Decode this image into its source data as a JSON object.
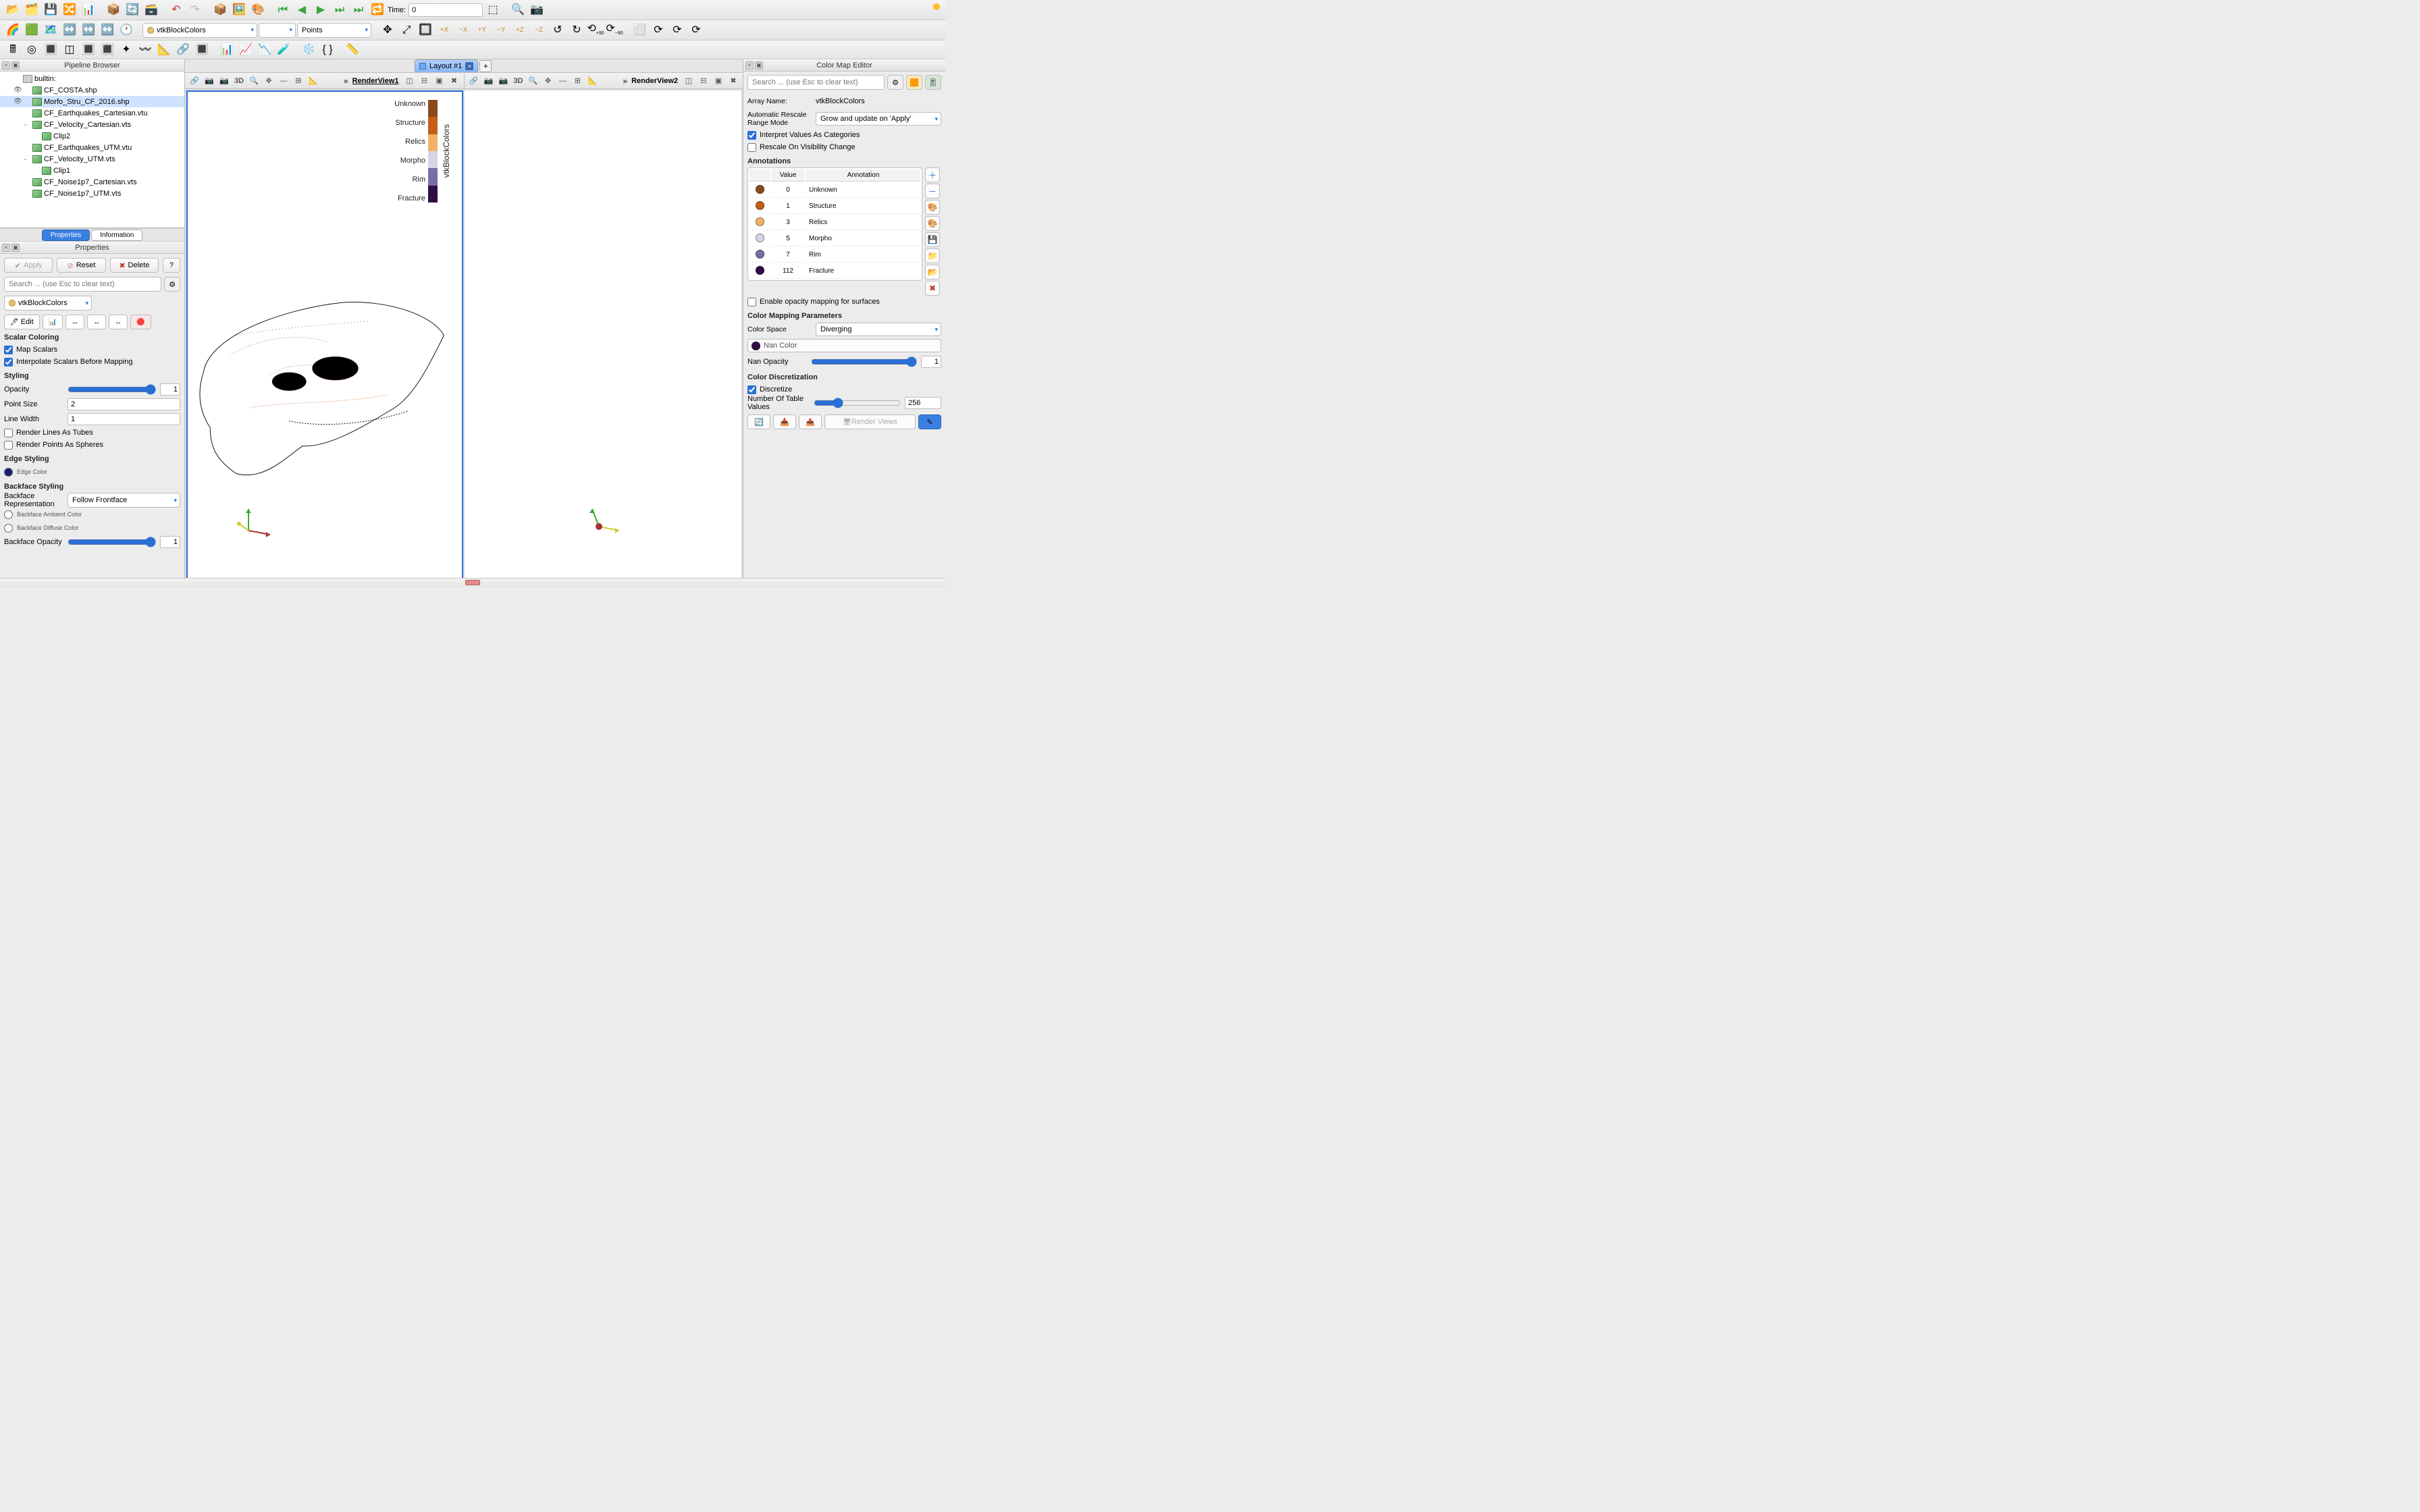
{
  "toolbar1": {
    "time_label": "Time:",
    "time_value": "0"
  },
  "toolbar2": {
    "color_array_combo": "vtkBlockColors",
    "component_combo": "",
    "representation_combo": "Points"
  },
  "layout_tab": "Layout #1",
  "pipeline": {
    "title": "Pipeline Browser",
    "root": "builtin:",
    "items": [
      {
        "label": "CF_COSTA.shp",
        "eye": true,
        "depth": 1
      },
      {
        "label": "Morfo_Stru_CF_2016.shp",
        "eye": true,
        "depth": 1,
        "selected": true
      },
      {
        "label": "CF_Earthquakes_Cartesian.vtu",
        "depth": 1
      },
      {
        "label": "CF_Velocity_Cartesian.vts",
        "depth": 1,
        "expand": "−"
      },
      {
        "label": "Clip2",
        "depth": 2
      },
      {
        "label": "CF_Earthquakes_UTM.vtu",
        "depth": 1
      },
      {
        "label": "CF_Velocity_UTM.vts",
        "depth": 1,
        "expand": "−"
      },
      {
        "label": "Clip1",
        "depth": 2
      },
      {
        "label": "CF_Noise1p7_Cartesian.vts",
        "depth": 1
      },
      {
        "label": "CF_Noise1p7_UTM.vts",
        "depth": 1
      }
    ]
  },
  "tabs": {
    "properties": "Properties",
    "information": "Information"
  },
  "properties": {
    "title": "Properties",
    "apply": "Apply",
    "reset": "Reset",
    "delete": "Delete",
    "help": "?",
    "search_placeholder": "Search ... (use Esc to clear text)",
    "array_combo": "vtkBlockColors",
    "edit_btn": "Edit",
    "section_scalar": "Scalar Coloring",
    "map_scalars": "Map Scalars",
    "interpolate": "Interpolate Scalars Before Mapping",
    "section_styling": "Styling",
    "opacity_label": "Opacity",
    "opacity_val": "1",
    "pointsize_label": "Point Size",
    "pointsize_val": "2",
    "linewidth_label": "Line Width",
    "linewidth_val": "1",
    "render_tubes": "Render Lines As Tubes",
    "render_spheres": "Render Points As Spheres",
    "section_edge": "Edge Styling",
    "edge_color_label": "Edge Color",
    "edge_color": "#1b1e7a",
    "section_backface": "Backface Styling",
    "bf_repr_label": "Backface Representation",
    "bf_repr_value": "Follow Frontface",
    "bf_ambient": "Backface Ambient Color",
    "bf_diffuse": "Backface Diffuse Color",
    "bf_opacity_label": "Backface Opacity",
    "bf_opacity_val": "1"
  },
  "views": {
    "rv1": "RenderView1",
    "rv2": "RenderView2",
    "mode3d": "3D"
  },
  "legend": {
    "title": "vtkBlockColors",
    "items": [
      {
        "label": "Unknown",
        "color": "#8a4a1d"
      },
      {
        "label": "Structure",
        "color": "#c45e14"
      },
      {
        "label": "Relics",
        "color": "#f2b069"
      },
      {
        "label": "Morpho",
        "color": "#d7d4e8"
      },
      {
        "label": "Rim",
        "color": "#7a6ca6"
      },
      {
        "label": "Fracture",
        "color": "#2f0e46"
      }
    ]
  },
  "cme": {
    "title": "Color Map Editor",
    "search_placeholder": "Search ... (use Esc to clear text)",
    "array_name_label": "Array Name:",
    "array_name": "vtkBlockColors",
    "rescale_mode_label": "Automatic Rescale Range Mode",
    "rescale_mode_value": "Grow and update on 'Apply'",
    "interpret_cat": "Interpret Values As Categories",
    "rescale_vis": "Rescale On Visibility Change",
    "section_ann": "Annotations",
    "col_value": "Value",
    "col_ann": "Annotation",
    "rows": [
      {
        "value": "0",
        "ann": "Unknown",
        "color": "#8a4a1d"
      },
      {
        "value": "1",
        "ann": "Structure",
        "color": "#c45e14"
      },
      {
        "value": "3",
        "ann": "Relics",
        "color": "#f2b069"
      },
      {
        "value": "5",
        "ann": "Morpho",
        "color": "#d7d4e8"
      },
      {
        "value": "7",
        "ann": "Rim",
        "color": "#7a6ca6"
      },
      {
        "value": "112",
        "ann": "Fracture",
        "color": "#2f0e46"
      }
    ],
    "enable_opacity": "Enable opacity mapping for surfaces",
    "section_cmp": "Color Mapping Parameters",
    "color_space_label": "Color Space",
    "color_space_value": "Diverging",
    "nan_color_label": "Nan Color",
    "nan_color": "#2f0e46",
    "nan_opacity_label": "Nan Opacity",
    "nan_opacity_val": "1",
    "section_cd": "Color Discretization",
    "discretize": "Discretize",
    "ntv_label": "Number Of Table Values",
    "ntv_val": "256",
    "render_views_btn": "Render Views"
  }
}
